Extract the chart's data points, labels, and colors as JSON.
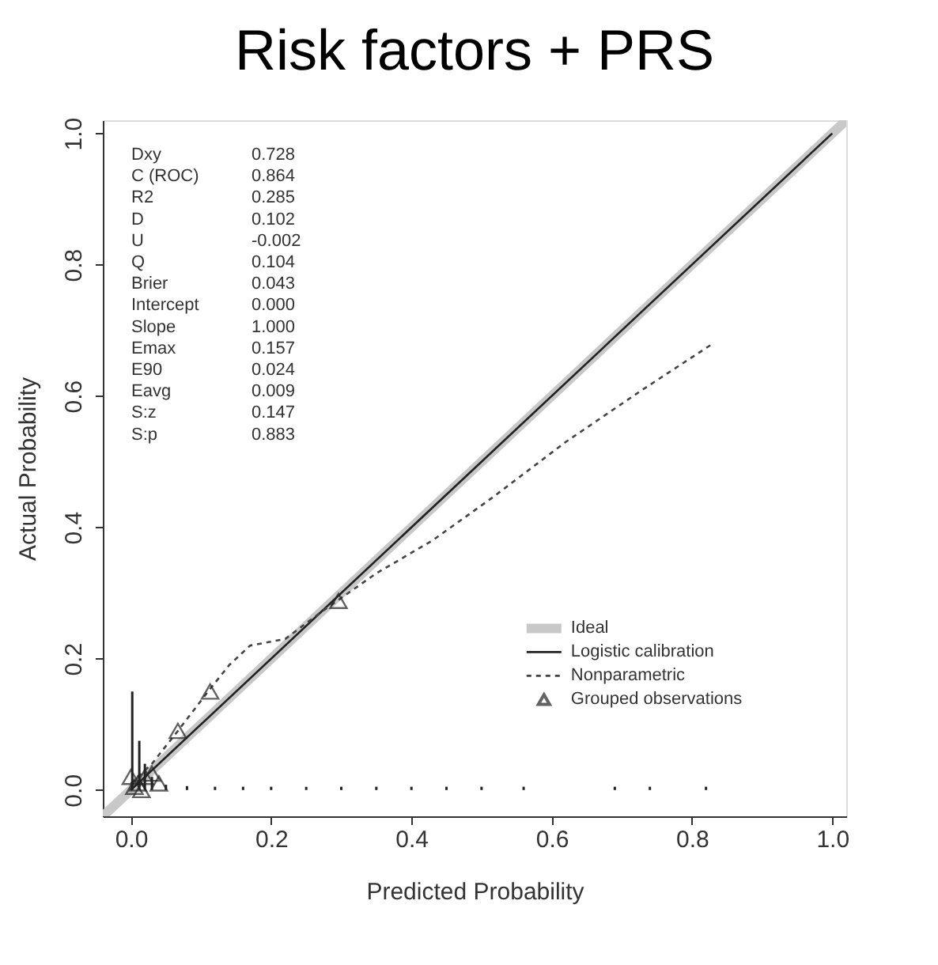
{
  "chart_data": {
    "type": "line",
    "title": "Risk factors + PRS",
    "xlabel": "Predicted Probability",
    "ylabel": "Actual Probability",
    "xlim": [
      -0.04,
      1.02
    ],
    "ylim": [
      -0.04,
      1.02
    ],
    "xticks": [
      {
        "value": 0,
        "label": "0.0"
      },
      0.2,
      0.4,
      0.6,
      0.8,
      {
        "value": 1,
        "label": "1.0"
      }
    ],
    "yticks": [
      {
        "value": 0,
        "label": "0.0"
      },
      0.2,
      0.4,
      0.6,
      0.8,
      {
        "value": 1,
        "label": "1.0"
      }
    ],
    "grid": false,
    "legend": "bottom right",
    "series": [
      {
        "name": "Ideal",
        "color": "#c8c8c8",
        "line_style": "solid",
        "x": [
          -0.04,
          1.02
        ],
        "values": [
          -0.04,
          1.02
        ]
      },
      {
        "name": "Logistic calibration",
        "color": "#222222",
        "line_style": "solid",
        "x": [
          0.0,
          1.0
        ],
        "values": [
          0.0,
          1.0
        ]
      },
      {
        "name": "Nonparametric",
        "color": "#444444",
        "line_style": "dashed",
        "x": [
          0.0,
          0.03,
          0.067,
          0.11,
          0.14,
          0.17,
          0.22,
          0.27,
          0.31,
          0.35,
          0.43,
          0.515,
          0.62,
          0.73,
          0.83
        ],
        "values": [
          0.01,
          0.04,
          0.09,
          0.15,
          0.19,
          0.22,
          0.23,
          0.27,
          0.3,
          0.33,
          0.38,
          0.445,
          0.53,
          0.61,
          0.68
        ]
      },
      {
        "name": "Grouped observations",
        "type": "scatter",
        "color": "#222222",
        "marker": "triangle",
        "x": [
          0.0,
          0.005,
          0.01,
          0.015,
          0.02,
          0.03,
          0.04,
          0.067,
          0.113,
          0.296
        ],
        "values": [
          0.02,
          0.005,
          0.01,
          0.0,
          0.02,
          0.025,
          0.01,
          0.09,
          0.15,
          0.288
        ]
      },
      {
        "type": "bar",
        "color": "#222222",
        "x": [
          0.002,
          0.012,
          0.02,
          0.03,
          0.05,
          0.08,
          0.12,
          0.16,
          0.2,
          0.25,
          0.3,
          0.35,
          0.4,
          0.45,
          0.5,
          0.56,
          0.69,
          0.74,
          0.82
        ],
        "values": [
          0.15,
          0.075,
          0.04,
          0.02,
          0.008,
          0.006,
          0.005,
          0.005,
          0.005,
          0.005,
          0.005,
          0.005,
          0.005,
          0.005,
          0.005,
          0.005,
          0.005,
          0.005,
          0.005
        ]
      }
    ],
    "annotations": [
      "Dxy 0.728",
      "C (ROC) 0.864",
      "R2 0.285",
      "D 0.102",
      "U -0.002",
      "Q 0.104",
      "Brier 0.043",
      "Intercept 0.000",
      "Slope 1.000",
      "Emax 0.157",
      "E90 0.024",
      "Eavg 0.009",
      "S:z 0.147",
      "S:p 0.883"
    ]
  }
}
